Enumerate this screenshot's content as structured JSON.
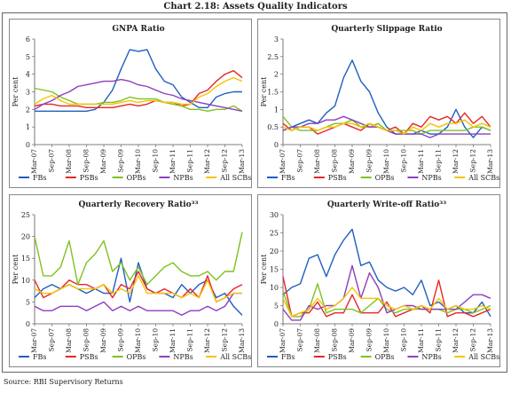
{
  "page": {
    "title": "Chart 2.18: Assets Quality Indicators",
    "source": "Source: RBI Supervisory Returns"
  },
  "legend": {
    "items": [
      {
        "name": "FBs",
        "color": "#1f5fbf"
      },
      {
        "name": "PSBs",
        "color": "#e8262a"
      },
      {
        "name": "OPBs",
        "color": "#7ec21f"
      },
      {
        "name": "NPBs",
        "color": "#8e3dbf"
      },
      {
        "name": "All SCBs",
        "color": "#f5c400"
      }
    ]
  },
  "chart_data": [
    {
      "type": "line",
      "title": "GNPA Ratio",
      "ylabel": "Per cent",
      "ylim": [
        0,
        6
      ],
      "yticks": [
        0,
        1,
        2,
        3,
        4,
        5,
        6
      ],
      "x_tick_labels": [
        "Mar-07",
        "Sep-07",
        "Mar-08",
        "Sep-08",
        "Mar-09",
        "Sep-09",
        "Mar-10",
        "Sep-10",
        "Mar-11",
        "Sep-11",
        "Mar-12",
        "Sep-12",
        "Mar-13"
      ],
      "x_count": 25,
      "series": [
        {
          "name": "FBs",
          "values": [
            1.9,
            1.9,
            1.9,
            1.9,
            1.9,
            1.9,
            1.9,
            2.0,
            2.4,
            3.1,
            4.3,
            5.4,
            5.3,
            5.4,
            4.3,
            3.6,
            3.4,
            2.7,
            2.4,
            2.1,
            2.1,
            2.7,
            2.9,
            3.0,
            3.0
          ]
        },
        {
          "name": "PSBs",
          "values": [
            2.2,
            2.3,
            2.3,
            2.2,
            2.2,
            2.2,
            2.1,
            2.1,
            2.1,
            2.1,
            2.2,
            2.3,
            2.2,
            2.3,
            2.5,
            2.4,
            2.4,
            2.2,
            2.3,
            2.9,
            3.1,
            3.6,
            4.0,
            4.2,
            3.8
          ]
        },
        {
          "name": "OPBs",
          "values": [
            3.2,
            3.1,
            3.0,
            2.7,
            2.5,
            2.3,
            2.3,
            2.3,
            2.4,
            2.4,
            2.5,
            2.7,
            2.6,
            2.6,
            2.6,
            2.4,
            2.3,
            2.2,
            2.0,
            2.0,
            1.9,
            2.0,
            2.0,
            2.2,
            1.9
          ]
        },
        {
          "name": "NPBs",
          "values": [
            2.0,
            2.3,
            2.5,
            2.8,
            3.0,
            3.3,
            3.4,
            3.5,
            3.6,
            3.6,
            3.7,
            3.6,
            3.4,
            3.3,
            3.1,
            2.9,
            2.8,
            2.6,
            2.5,
            2.4,
            2.3,
            2.2,
            2.1,
            2.0,
            1.9
          ]
        },
        {
          "name": "All SCBs",
          "values": [
            2.3,
            2.6,
            2.8,
            2.5,
            2.3,
            2.3,
            2.3,
            2.3,
            2.3,
            2.3,
            2.4,
            2.5,
            2.4,
            2.5,
            2.5,
            2.4,
            2.4,
            2.3,
            2.3,
            2.7,
            2.9,
            3.3,
            3.6,
            3.8,
            3.6
          ]
        }
      ]
    },
    {
      "type": "line",
      "title": "Quarterly Slippage Ratio",
      "ylabel": "Per cent",
      "ylim": [
        0,
        3
      ],
      "yticks": [
        0,
        0.5,
        1,
        1.5,
        2,
        2.5,
        3
      ],
      "ytick_labels": [
        "0",
        "0.5",
        "1",
        "1.5",
        "2",
        "2.5",
        "3"
      ],
      "x_tick_labels": [
        "Mar-07",
        "Sep-07",
        "Mar-08",
        "Sep-08",
        "Mar-09",
        "Sep-09",
        "Mar-10",
        "Sep-10",
        "Mar-11",
        "Sep-11",
        "Mar-12",
        "Sep-12",
        "Mar-13"
      ],
      "x_count": 25,
      "series": [
        {
          "name": "FBs",
          "values": [
            0.4,
            0.5,
            0.6,
            0.7,
            0.6,
            0.9,
            1.1,
            1.9,
            2.4,
            1.8,
            1.5,
            0.9,
            0.5,
            0.3,
            0.3,
            0.3,
            0.4,
            0.3,
            0.3,
            0.5,
            1.0,
            0.5,
            0.2,
            0.5,
            0.4
          ]
        },
        {
          "name": "PSBs",
          "values": [
            0.6,
            0.4,
            0.5,
            0.5,
            0.3,
            0.4,
            0.5,
            0.6,
            0.5,
            0.4,
            0.6,
            0.5,
            0.4,
            0.5,
            0.3,
            0.6,
            0.5,
            0.8,
            0.7,
            0.8,
            0.6,
            0.9,
            0.6,
            0.8,
            0.5
          ]
        },
        {
          "name": "OPBs",
          "values": [
            0.8,
            0.5,
            0.4,
            0.4,
            0.4,
            0.5,
            0.6,
            0.6,
            0.7,
            0.5,
            0.5,
            0.6,
            0.4,
            0.4,
            0.4,
            0.4,
            0.3,
            0.4,
            0.4,
            0.4,
            0.4,
            0.4,
            0.5,
            0.5,
            0.4
          ]
        },
        {
          "name": "NPBs",
          "values": [
            0.4,
            0.5,
            0.5,
            0.6,
            0.6,
            0.7,
            0.7,
            0.8,
            0.7,
            0.6,
            0.5,
            0.5,
            0.4,
            0.3,
            0.3,
            0.3,
            0.3,
            0.2,
            0.3,
            0.3,
            0.3,
            0.3,
            0.3,
            0.3,
            0.3
          ]
        },
        {
          "name": "All SCBs",
          "values": [
            0.5,
            0.4,
            0.5,
            0.5,
            0.4,
            0.5,
            0.5,
            0.6,
            0.6,
            0.5,
            0.6,
            0.5,
            0.4,
            0.4,
            0.3,
            0.5,
            0.4,
            0.6,
            0.5,
            0.6,
            0.6,
            0.7,
            0.5,
            0.6,
            0.5
          ]
        }
      ]
    },
    {
      "type": "line",
      "title": "Quarterly Recovery Ratio³³",
      "ylabel": "Per cent",
      "ylim": [
        0,
        25
      ],
      "yticks": [
        0,
        5,
        10,
        15,
        20,
        25
      ],
      "x_tick_labels": [
        "Mar-07",
        "Sep-07",
        "Mar-08",
        "Sep-08",
        "Mar-09",
        "Sep-09",
        "Mar-10",
        "Sep-10",
        "Mar-11",
        "Sep-11",
        "Mar-12",
        "Sep-12",
        "Mar-13"
      ],
      "x_count": 25,
      "series": [
        {
          "name": "FBs",
          "values": [
            6,
            8,
            9,
            8,
            9,
            8,
            7,
            8,
            7,
            7,
            15,
            5,
            14,
            8,
            7,
            7,
            6,
            9,
            7,
            9,
            10,
            6,
            7,
            4,
            2
          ]
        },
        {
          "name": "PSBs",
          "values": [
            10,
            6,
            7,
            8,
            10,
            9,
            9,
            8,
            9,
            6,
            9,
            8,
            12,
            8,
            7,
            8,
            7,
            6,
            8,
            6,
            11,
            5,
            6,
            8,
            9
          ]
        },
        {
          "name": "OPBs",
          "values": [
            20,
            11,
            11,
            13,
            19,
            9,
            14,
            16,
            19,
            12,
            14,
            10,
            13,
            9,
            11,
            13,
            14,
            12,
            11,
            11,
            12,
            10,
            12,
            12,
            21
          ]
        },
        {
          "name": "NPBs",
          "values": [
            4,
            3,
            3,
            4,
            4,
            4,
            3,
            4,
            5,
            3,
            4,
            3,
            4,
            3,
            3,
            3,
            3,
            2,
            3,
            3,
            4,
            3,
            4,
            7,
            7
          ]
        },
        {
          "name": "All SCBs",
          "values": [
            8,
            7,
            7,
            8,
            9,
            8,
            8,
            8,
            9,
            7,
            8,
            7,
            11,
            7,
            7,
            7,
            7,
            6,
            7,
            6,
            10,
            5,
            6,
            7,
            7
          ]
        }
      ]
    },
    {
      "type": "line",
      "title": "Quarterly Write-off Ratio³³",
      "ylabel": "Per cent",
      "ylim": [
        0,
        30
      ],
      "yticks": [
        0,
        5,
        10,
        15,
        20,
        25,
        30
      ],
      "x_tick_labels": [
        "Mar-07",
        "Sep-07",
        "Mar-08",
        "Sep-08",
        "Mar-09",
        "Sep-09",
        "Mar-10",
        "Sep-10",
        "Mar-11",
        "Sep-11",
        "Mar-12",
        "Sep-12",
        "Mar-13"
      ],
      "x_count": 25,
      "series": [
        {
          "name": "FBs",
          "values": [
            8,
            10,
            11,
            18,
            19,
            13,
            19,
            23,
            26,
            16,
            17,
            12,
            10,
            9,
            10,
            8,
            12,
            5,
            6,
            4,
            5,
            3,
            3,
            6,
            2
          ]
        },
        {
          "name": "PSBs",
          "values": [
            13,
            2,
            3,
            3,
            6,
            2,
            3,
            3,
            8,
            3,
            3,
            3,
            6,
            2,
            3,
            4,
            5,
            3,
            12,
            2,
            3,
            3,
            2,
            3,
            4
          ]
        },
        {
          "name": "OPBs",
          "values": [
            9,
            2,
            2,
            4,
            11,
            3,
            4,
            4,
            4,
            3,
            5,
            7,
            4,
            3,
            4,
            4,
            4,
            4,
            4,
            3,
            4,
            4,
            3,
            4,
            5
          ]
        },
        {
          "name": "NPBs",
          "values": [
            4,
            1,
            1,
            5,
            4,
            5,
            5,
            7,
            16,
            7,
            14,
            10,
            3,
            4,
            5,
            5,
            4,
            4,
            4,
            4,
            4,
            6,
            8,
            8,
            7
          ]
        },
        {
          "name": "All SCBs",
          "values": [
            7,
            2,
            3,
            4,
            7,
            4,
            5,
            7,
            10,
            7,
            7,
            7,
            5,
            4,
            5,
            4,
            5,
            4,
            7,
            4,
            5,
            4,
            4,
            5,
            4
          ]
        }
      ]
    }
  ]
}
